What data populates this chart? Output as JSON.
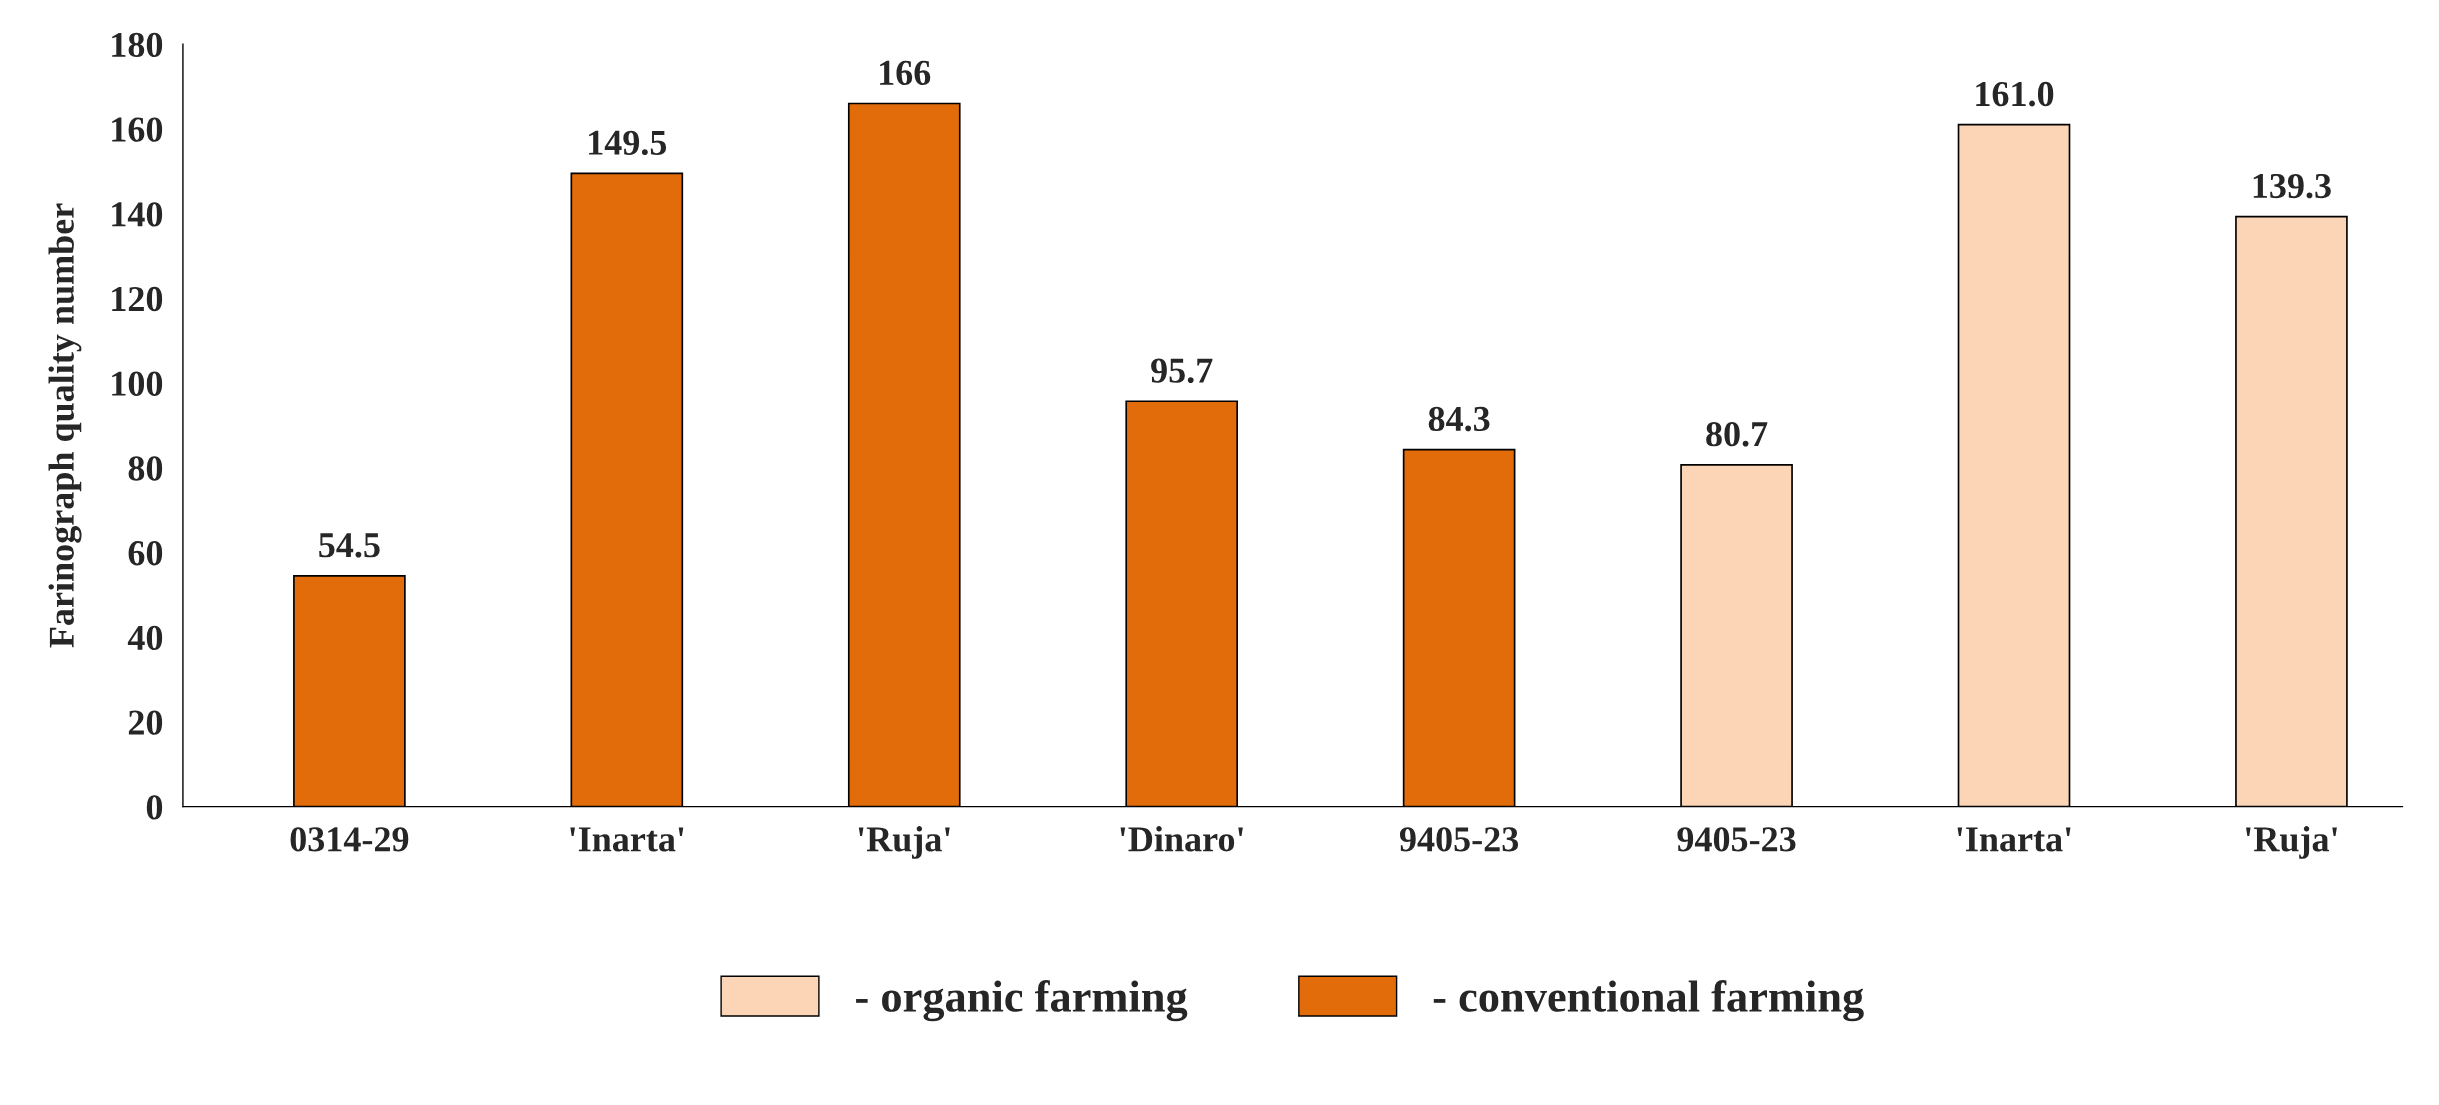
{
  "chart_data": {
    "type": "bar",
    "ylabel": "Farinograph quality number",
    "categories": [
      "0314-29",
      "'Inarta'",
      "'Ruja'",
      "'Dinaro'",
      "9405-23",
      "9405-23",
      "'Inarta'",
      "'Ruja'"
    ],
    "series": [
      {
        "name": "- organic farming",
        "color": "#fbd5b5",
        "values": [
          null,
          null,
          null,
          null,
          null,
          80.7,
          161.0,
          139.3
        ],
        "value_labels": [
          null,
          null,
          null,
          null,
          null,
          "80.7",
          "161.0",
          "139.3"
        ]
      },
      {
        "name": "- conventional farming",
        "color": "#e36c0a",
        "values": [
          54.5,
          149.5,
          166,
          95.7,
          84.3,
          null,
          null,
          null
        ],
        "value_labels": [
          "54.5",
          "149.5",
          "166",
          "95.7",
          "84.3",
          null,
          null,
          null
        ]
      }
    ],
    "ylim": [
      0,
      180
    ],
    "yticks": [
      0,
      20,
      40,
      60,
      80,
      100,
      120,
      140,
      160,
      180
    ],
    "grid": false,
    "legend": "bottom"
  }
}
